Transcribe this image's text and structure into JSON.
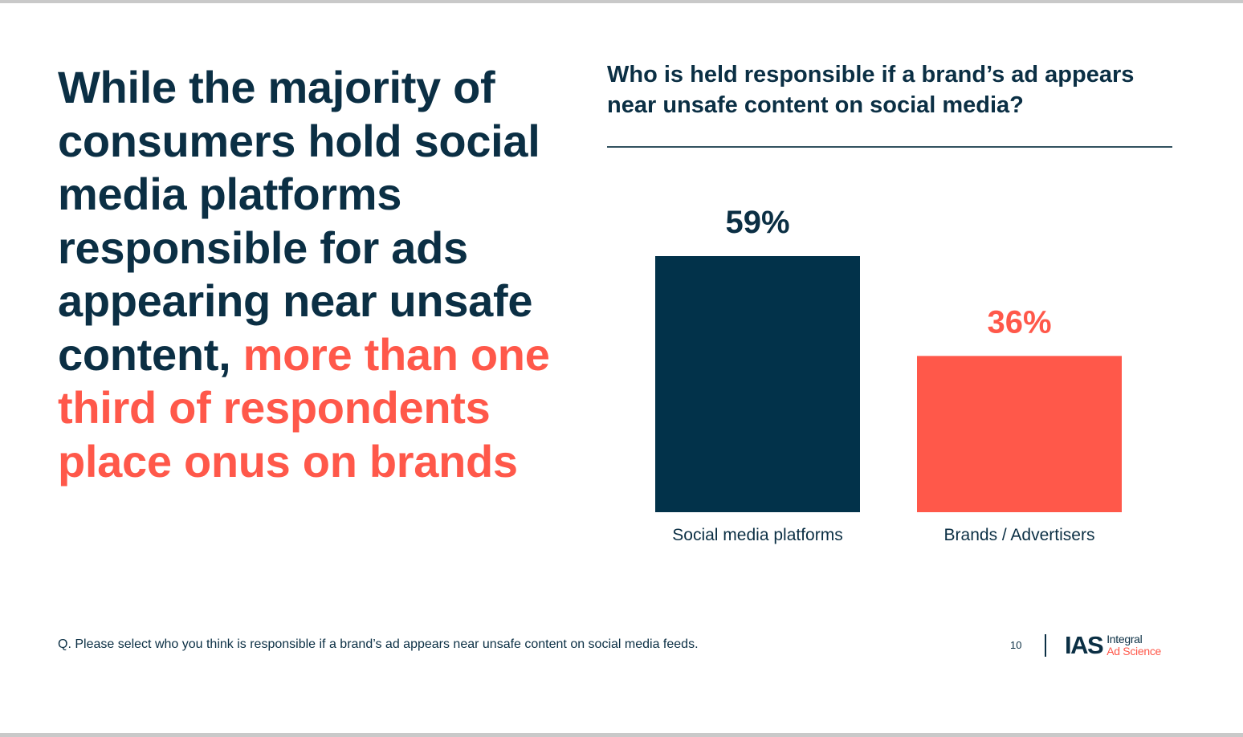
{
  "headline": {
    "lead": "While the majority of consumers hold social media platforms responsible for ads appearing near unsafe content,",
    "highlight": "more than one third of respondents place onus on brands"
  },
  "footnote": "Q. Please select who you think is responsible if a brand’s ad appears near unsafe content on social media feeds.",
  "page_number": "10",
  "logo": {
    "mark": "IAS",
    "line1": "Integral",
    "line2": "Ad Science"
  },
  "colors": {
    "navy": "#0b2f44",
    "bar_navy": "#02324a",
    "coral": "#ff584a"
  },
  "chart_data": {
    "type": "bar",
    "title": "Who is held responsible if a brand’s ad appears near unsafe content on social media?",
    "categories": [
      "Social media platforms",
      "Brands / Advertisers"
    ],
    "values": [
      59,
      36
    ],
    "data_labels": [
      "59%",
      "36%"
    ],
    "bar_colors": [
      "#02324a",
      "#ff584a"
    ],
    "label_colors": [
      "#0b2f44",
      "#ff584a"
    ],
    "xlabel": "",
    "ylabel": "",
    "ylim": [
      0,
      59
    ],
    "grid": false,
    "legend": "none"
  }
}
